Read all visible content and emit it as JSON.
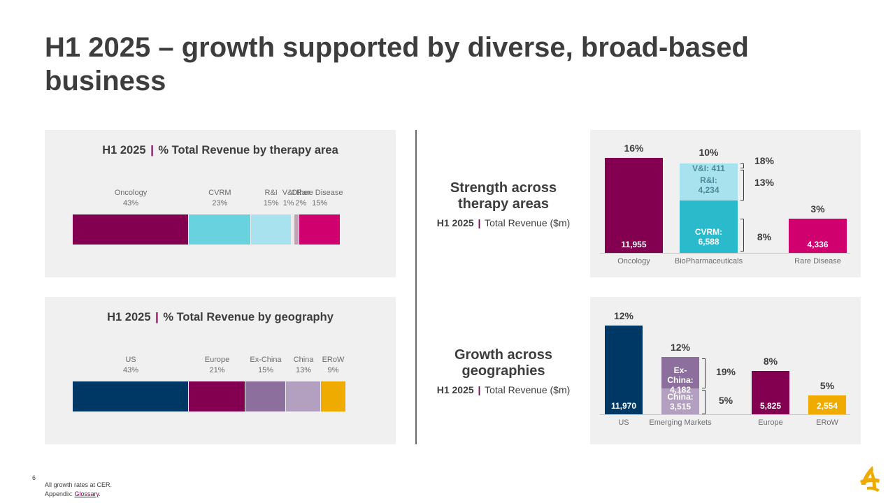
{
  "page": {
    "title": "H1 2025 – growth supported by diverse, broad-based business",
    "page_number": "6",
    "footnote_line1": "All growth rates at CER.",
    "footnote_appendix_prefix": "Appendix: ",
    "footnote_glossary": "Glossary",
    "footnote_period": "."
  },
  "colors": {
    "oncology": "#830051",
    "cvrm": "#68d2df",
    "ri": "#a7e2ee",
    "vi": "#e8e8e8",
    "other": "#c4a0b4",
    "rare": "#d0006f",
    "us": "#003865",
    "europe": "#830051",
    "exchina": "#8c6f9c",
    "china": "#b39fc0",
    "erow": "#f0ab00",
    "cvrm_dark": "#2bbacc"
  },
  "therapy_panel": {
    "title_prefix": "H1 2025",
    "title_sep": "|",
    "title_text": "% Total Revenue by therapy area"
  },
  "geo_panel": {
    "title_prefix": "H1 2025",
    "title_sep": "|",
    "title_text": "% Total Revenue by geography"
  },
  "therapy_section": {
    "title": "Strength across therapy areas",
    "sub_prefix": "H1 2025",
    "sub_sep": "|",
    "sub_text": "Total Revenue ($m)"
  },
  "geo_section": {
    "title": "Growth across geographies",
    "sub_prefix": "H1 2025",
    "sub_sep": "|",
    "sub_text": "Total Revenue ($m)"
  },
  "chart_data": [
    {
      "type": "bar",
      "subtype": "100% stacked horizontal",
      "title": "H1 2025 | % Total Revenue by therapy area",
      "categories": [
        "Oncology",
        "CVRM",
        "R&I",
        "V&I",
        "Other",
        "Rare Disease"
      ],
      "value_labels": [
        "43%",
        "23%",
        "15%",
        "1%",
        "2%",
        "15%"
      ],
      "values": [
        43,
        23,
        15,
        1,
        2,
        15
      ]
    },
    {
      "type": "bar",
      "subtype": "100% stacked horizontal",
      "title": "H1 2025 | % Total Revenue by geography",
      "categories": [
        "US",
        "Europe",
        "Ex-China",
        "China",
        "ERoW"
      ],
      "value_labels": [
        "43%",
        "21%",
        "15%",
        "13%",
        "9%"
      ],
      "values": [
        43,
        21,
        15,
        13,
        9
      ]
    },
    {
      "type": "bar",
      "subtype": "stacked vertical",
      "title": "Strength across therapy areas",
      "ylabel": "Total Revenue ($m)",
      "categories": [
        "Oncology",
        "BioPharmaceuticals",
        "Rare Disease"
      ],
      "bars": [
        {
          "category": "Oncology",
          "growth": "16%",
          "segments": [
            {
              "name": "",
              "value": 11955,
              "label": "11,955"
            }
          ]
        },
        {
          "category": "BioPharmaceuticals",
          "growth": "10%",
          "segments": [
            {
              "name": "CVRM:",
              "value": 6588,
              "label": "6,588",
              "growth": "8%"
            },
            {
              "name": "R&I:",
              "value": 4234,
              "label": "4,234",
              "growth": "13%"
            },
            {
              "name": "V&I:",
              "value": 411,
              "label": "411",
              "growth": "18%"
            }
          ]
        },
        {
          "category": "Rare Disease",
          "growth": "3%",
          "segments": [
            {
              "name": "",
              "value": 4336,
              "label": "4,336"
            }
          ]
        }
      ]
    },
    {
      "type": "bar",
      "subtype": "stacked vertical",
      "title": "Growth across geographies",
      "ylabel": "Total Revenue ($m)",
      "categories": [
        "US",
        "Emerging Markets",
        "Europe",
        "ERoW"
      ],
      "bars": [
        {
          "category": "US",
          "growth": "12%",
          "segments": [
            {
              "name": "",
              "value": 11970,
              "label": "11,970"
            }
          ]
        },
        {
          "category": "Emerging Markets",
          "growth": "12%",
          "segments": [
            {
              "name": "China:",
              "value": 3515,
              "label": "3,515",
              "growth": "5%"
            },
            {
              "name": "Ex-China:",
              "value": 4182,
              "label": "4,182",
              "growth": "19%"
            }
          ]
        },
        {
          "category": "Europe",
          "growth": "8%",
          "segments": [
            {
              "name": "",
              "value": 5825,
              "label": "5,825"
            }
          ]
        },
        {
          "category": "ERoW",
          "growth": "5%",
          "segments": [
            {
              "name": "",
              "value": 2554,
              "label": "2,554"
            }
          ]
        }
      ]
    }
  ]
}
